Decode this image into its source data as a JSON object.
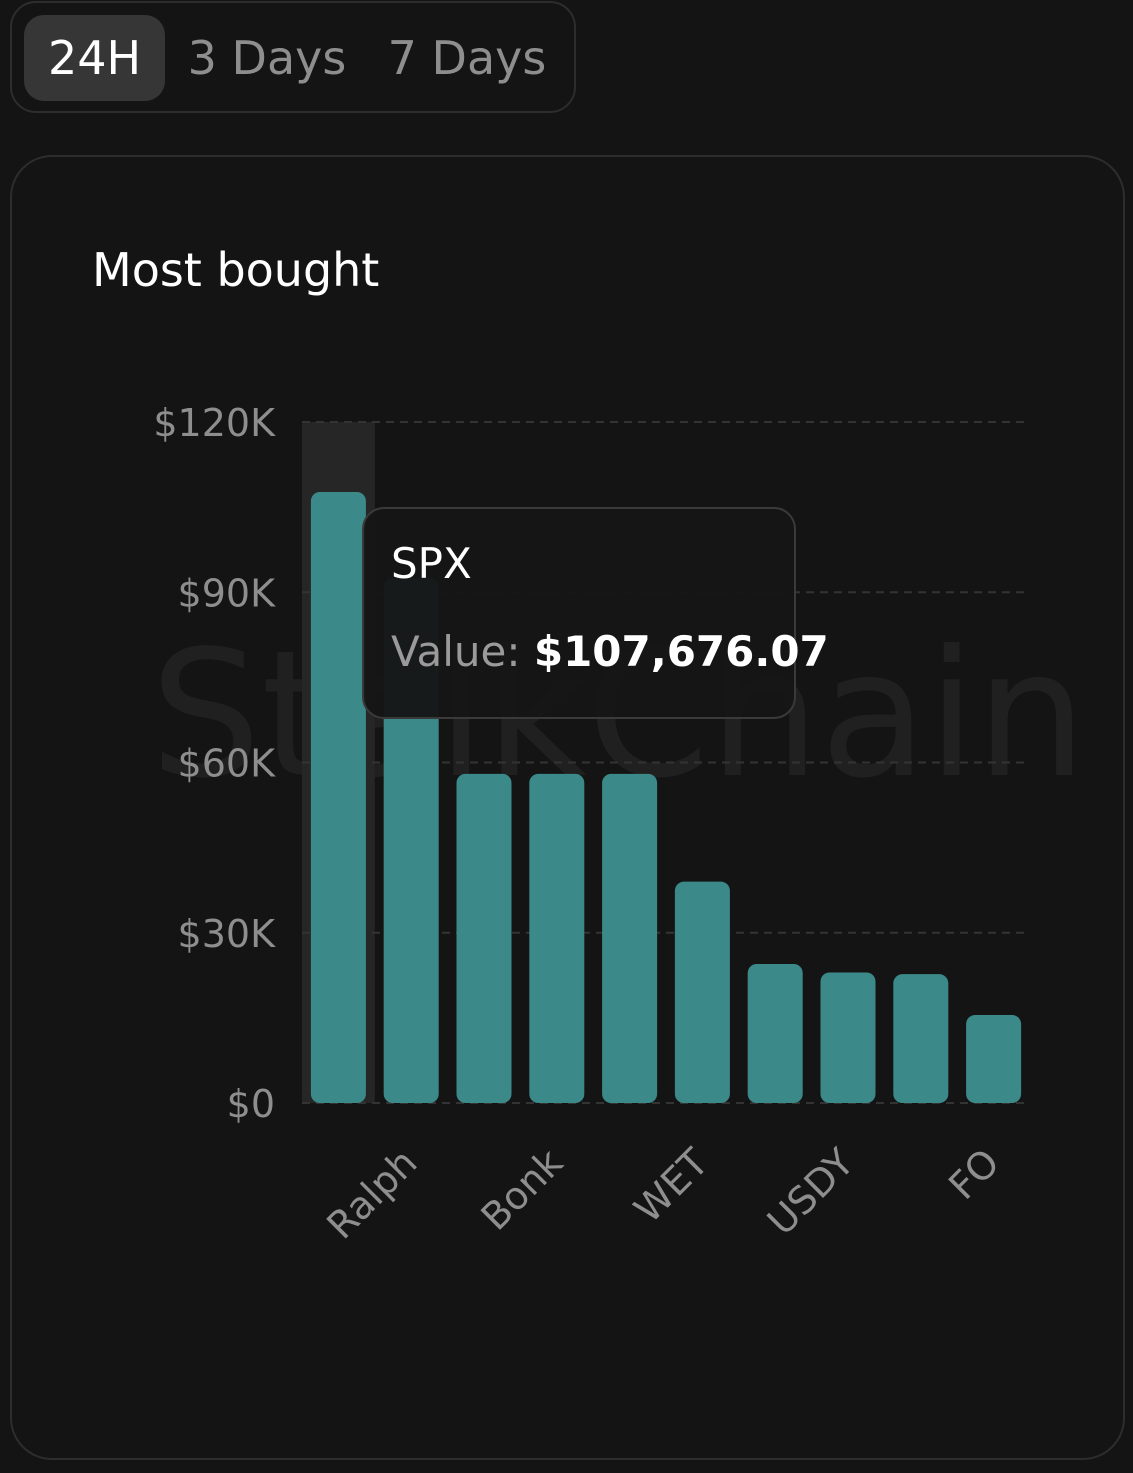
{
  "tabs": [
    {
      "label": "24H",
      "active": true
    },
    {
      "label": "3 Days",
      "active": false
    },
    {
      "label": "7 Days",
      "active": false
    }
  ],
  "chart_card": {
    "title": "Most bought",
    "watermark": "StalkChain"
  },
  "tooltip": {
    "title": "SPX",
    "value_label": "Value:",
    "value_text": "$107,676.07"
  },
  "colors": {
    "background": "#141414",
    "bar": "#3b8a89",
    "hover_column": "#262626",
    "grid": "#333333",
    "tick_text": "#8e8e8e"
  },
  "chart_data": {
    "type": "bar",
    "title": "Most bought",
    "xlabel": "",
    "ylabel": "",
    "ylim": [
      0,
      120000
    ],
    "yticks": [
      0,
      30000,
      60000,
      90000,
      120000
    ],
    "ytick_labels": [
      "$0",
      "$30K",
      "$60K",
      "$90K",
      "$120K"
    ],
    "categories": [
      "SPX",
      "Ralph",
      "",
      "Bonk",
      "",
      "WET",
      "",
      "USDY",
      "",
      "FO"
    ],
    "values": [
      107676.07,
      92500,
      58000,
      58000,
      58000,
      39000,
      24500,
      23000,
      22700,
      15500
    ],
    "visible_xtick_labels": [
      "Ralph",
      "Bonk",
      "WET",
      "USDY",
      "FO"
    ],
    "highlighted_index": 0,
    "grid": true,
    "legend": "none"
  }
}
